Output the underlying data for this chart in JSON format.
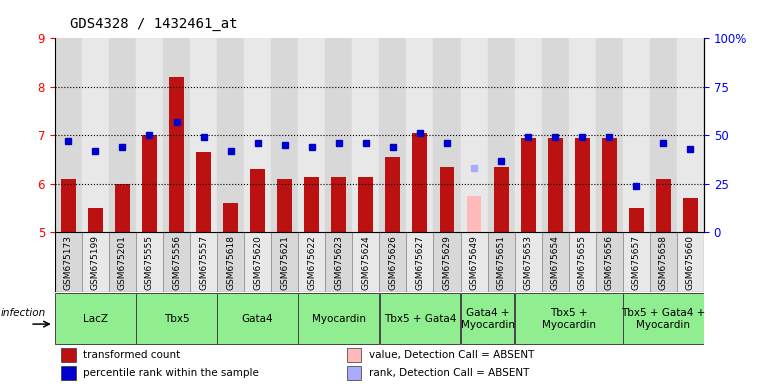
{
  "title": "GDS4328 / 1432461_at",
  "samples": [
    "GSM675173",
    "GSM675199",
    "GSM675201",
    "GSM675555",
    "GSM675556",
    "GSM675557",
    "GSM675618",
    "GSM675620",
    "GSM675621",
    "GSM675622",
    "GSM675623",
    "GSM675624",
    "GSM675626",
    "GSM675627",
    "GSM675629",
    "GSM675649",
    "GSM675651",
    "GSM675653",
    "GSM675654",
    "GSM675655",
    "GSM675656",
    "GSM675657",
    "GSM675658",
    "GSM675660"
  ],
  "bar_values": [
    6.1,
    5.5,
    6.0,
    7.0,
    8.2,
    6.65,
    5.6,
    6.3,
    6.1,
    6.15,
    6.15,
    6.15,
    6.55,
    7.05,
    6.35,
    5.75,
    6.35,
    6.95,
    6.95,
    6.95,
    6.95,
    5.5,
    6.1,
    5.7
  ],
  "bar_absent": [
    false,
    false,
    false,
    false,
    false,
    false,
    false,
    false,
    false,
    false,
    false,
    false,
    false,
    false,
    false,
    true,
    false,
    false,
    false,
    false,
    false,
    false,
    false,
    false
  ],
  "rank_values": [
    47,
    42,
    44,
    50,
    57,
    49,
    42,
    46,
    45,
    44,
    46,
    46,
    44,
    51,
    46,
    33,
    37,
    49,
    49,
    49,
    49,
    24,
    46,
    43
  ],
  "rank_absent": [
    false,
    false,
    false,
    false,
    false,
    false,
    false,
    false,
    false,
    false,
    false,
    false,
    false,
    false,
    false,
    true,
    false,
    false,
    false,
    false,
    false,
    false,
    false,
    false
  ],
  "groups": [
    {
      "label": "LacZ",
      "start": 0,
      "end": 2
    },
    {
      "label": "Tbx5",
      "start": 3,
      "end": 5
    },
    {
      "label": "Gata4",
      "start": 6,
      "end": 8
    },
    {
      "label": "Myocardin",
      "start": 9,
      "end": 11
    },
    {
      "label": "Tbx5 + Gata4",
      "start": 12,
      "end": 14
    },
    {
      "label": "Gata4 +\nMyocardin",
      "start": 15,
      "end": 16
    },
    {
      "label": "Tbx5 +\nMyocardin",
      "start": 17,
      "end": 20
    },
    {
      "label": "Tbx5 + Gata4 +\nMyocardin",
      "start": 21,
      "end": 23
    }
  ],
  "ylim_left": [
    5,
    9
  ],
  "ylim_right": [
    0,
    100
  ],
  "yticks_left": [
    5,
    6,
    7,
    8,
    9
  ],
  "yticks_right": [
    0,
    25,
    50,
    75,
    100
  ],
  "ytick_labels_right": [
    "0",
    "25",
    "50",
    "75",
    "100%"
  ],
  "bar_color": "#bb1111",
  "bar_color_absent": "#ffbbbb",
  "rank_color": "#0000cc",
  "rank_color_absent": "#aaaaff",
  "col_bg_even": "#d8d8d8",
  "col_bg_odd": "#e8e8e8",
  "green_color": "#90ee90",
  "legend_items": [
    {
      "color": "#bb1111",
      "label": "transformed count",
      "col": 0,
      "row": 0
    },
    {
      "color": "#0000cc",
      "label": "percentile rank within the sample",
      "col": 0,
      "row": 1
    },
    {
      "color": "#ffbbbb",
      "label": "value, Detection Call = ABSENT",
      "col": 1,
      "row": 0
    },
    {
      "color": "#aaaaff",
      "label": "rank, Detection Call = ABSENT",
      "col": 1,
      "row": 1
    }
  ]
}
